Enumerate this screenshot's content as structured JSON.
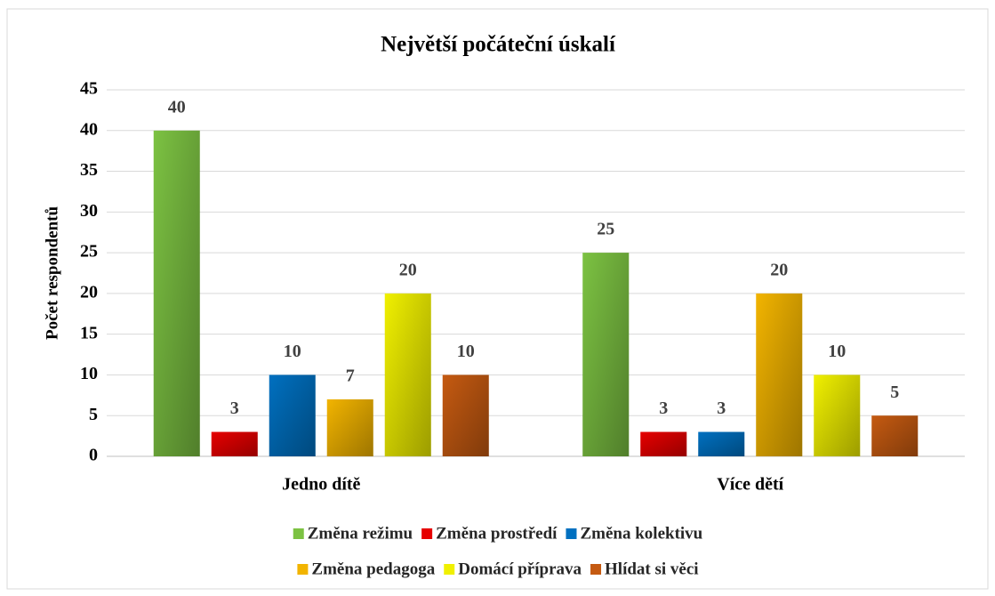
{
  "chart_data": {
    "type": "bar",
    "title": "Největší počáteční úskalí",
    "y_label": "Počet respondentů",
    "categories": [
      "Jedno dítě",
      "Více dětí"
    ],
    "series": [
      {
        "name": "Změna režimu",
        "color": "#7cc242",
        "values": [
          40,
          25
        ]
      },
      {
        "name": "Změna prostředí",
        "color": "#e60000",
        "values": [
          3,
          3
        ]
      },
      {
        "name": "Změna kolektivu",
        "color": "#0070c0",
        "values": [
          10,
          3
        ]
      },
      {
        "name": "Změna pedagoga",
        "color": "#f2b400",
        "values": [
          7,
          20
        ]
      },
      {
        "name": "Domácí příprava",
        "color": "#f0f000",
        "values": [
          20,
          10
        ]
      },
      {
        "name": "Hlídat si věci",
        "color": "#c55a11",
        "values": [
          10,
          5
        ]
      }
    ],
    "ylim": [
      0,
      45
    ],
    "yticks": [
      0,
      5,
      10,
      15,
      20,
      25,
      30,
      35,
      40,
      45
    ],
    "grid": true,
    "legend": "bottom"
  }
}
